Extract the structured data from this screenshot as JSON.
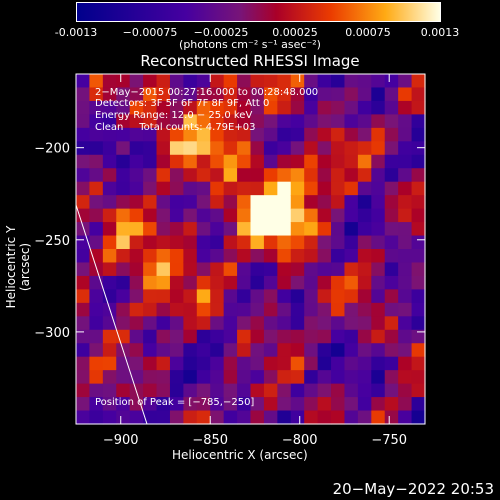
{
  "chart_data": {
    "type": "heatmap",
    "title": "Reconstructed RHESSI Image",
    "xlabel": "Heliocentric X (arcsec)",
    "ylabel": "Heliocentric Y (arcsec)",
    "xlim": [
      -925,
      -730
    ],
    "ylim": [
      -350,
      -160
    ],
    "x_ticks": [
      -900,
      -850,
      -800,
      -750
    ],
    "x_tick_labels": [
      "−900",
      "−850",
      "−800",
      "−750"
    ],
    "y_ticks": [
      -200,
      -250,
      -300
    ],
    "y_tick_labels": [
      "−200",
      "−250",
      "−300"
    ],
    "colorbar": {
      "range": [
        -0.0013,
        0.0013
      ],
      "ticks": [
        "-0.0013",
        "−0.00075",
        "−0.00025",
        "0.00025",
        "0.00075",
        "0.0013"
      ],
      "units": "(photons cm⁻² s⁻¹ asec⁻²)"
    },
    "annotations": {
      "line1": "2−May−2015 00:27:16.000 to 00:28:48.000",
      "line2": "Detectors: 3F 5F 6F 7F 8F 9F, Att 0",
      "line3": "Energy Range: 12.0 − 25.0 keV",
      "line4": "Clean     Total counts: 4.79E+03",
      "peak": "Position of Peak = [−785,−250]"
    },
    "peak": [
      -785,
      -250
    ]
  },
  "footer": {
    "timestamp": "20−May−2022 20:53"
  },
  "colors": {
    "background": "#000000",
    "text": "#ffffff"
  }
}
